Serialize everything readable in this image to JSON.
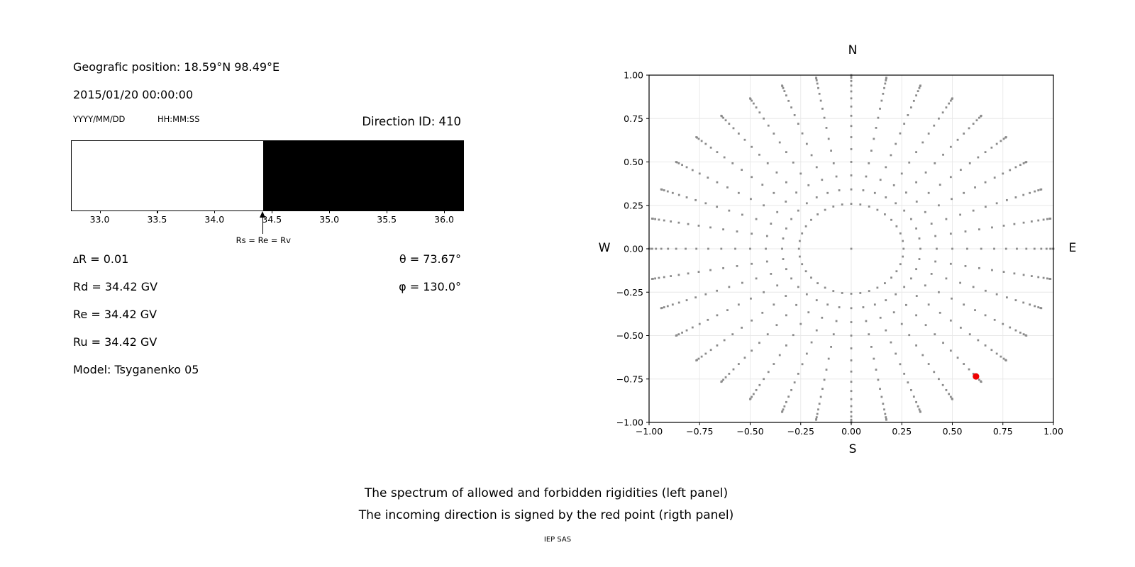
{
  "figure": {
    "background": "#ffffff",
    "captions": [
      "The spectrum of allowed and forbidden rigidities (left panel)",
      "The incoming direction is signed by the red point (rigth panel)"
    ],
    "credit": "IEP SAS"
  },
  "left_panel": {
    "geo_position": "Geografic position: 18.59°N 98.49°E",
    "datetime": "2015/01/20 00:00:00",
    "date_format_hint": "YYYY/MM/DD",
    "time_format_hint": "HH:MM:SS",
    "direction_id": "Direction ID: 410",
    "params": {
      "delta_symbol": "∆",
      "delta_rest": "R = 0.01",
      "rd": "Rd = 34.42 GV",
      "re": "Re = 34.42 GV",
      "ru": "Ru = 34.42 GV",
      "model": "Model: Tsyganenko 05",
      "theta": "θ = 73.67°",
      "phi": "φ = 130.0°"
    }
  },
  "chart_data": [
    {
      "type": "bar",
      "panel": "left",
      "title": "",
      "description": "Rigidity spectrum: white = allowed rigidities, black = forbidden rigidities",
      "x_domain": [
        32.75,
        36.16
      ],
      "x_ticks": [
        33.0,
        33.5,
        34.0,
        34.5,
        35.0,
        35.5,
        36.0
      ],
      "cutoff_rigidity_gv": 34.42,
      "regions": [
        {
          "name": "allowed",
          "from": 32.75,
          "to": 34.42,
          "color": "#ffffff"
        },
        {
          "name": "forbidden",
          "from": 34.42,
          "to": 36.16,
          "color": "#000000"
        }
      ],
      "annotation": {
        "text": "Rs = Re = Rv",
        "x": 34.42
      }
    },
    {
      "type": "scatter",
      "panel": "right",
      "title": "",
      "description": "Sky map of directions: grey dot grid every 10° azimuth, zenith 15°–90° step 5°, radius = sin(zenith); red point marks the incoming direction",
      "xlim": [
        -1.0,
        1.0
      ],
      "ylim": [
        -1.0,
        1.0
      ],
      "x_ticks": [
        -1.0,
        -0.75,
        -0.5,
        -0.25,
        0.0,
        0.25,
        0.5,
        0.75,
        1.0
      ],
      "y_ticks": [
        1.0,
        0.75,
        0.5,
        0.25,
        0.0,
        -0.25,
        -0.5,
        -0.75,
        -1.0
      ],
      "grid": true,
      "grid_color": "#e8e8e8",
      "compass": {
        "top": "N",
        "bottom": "S",
        "left": "W",
        "right": "E"
      },
      "dot_grid": {
        "azimuth_deg": {
          "start": 0,
          "step": 10,
          "count": 36
        },
        "zenith_deg": {
          "start": 15,
          "step": 5,
          "end": 90
        },
        "radius_rule": "sin(zenith)",
        "center_dot": true,
        "color": "#8b8b8b",
        "marker_px": 2.8
      },
      "red_point": {
        "x": 0.617,
        "y": -0.735,
        "zenith_deg": 73.67,
        "azimuth_deg": 130.0,
        "color": "#ee0000",
        "radius_px": 4.6
      }
    }
  ]
}
